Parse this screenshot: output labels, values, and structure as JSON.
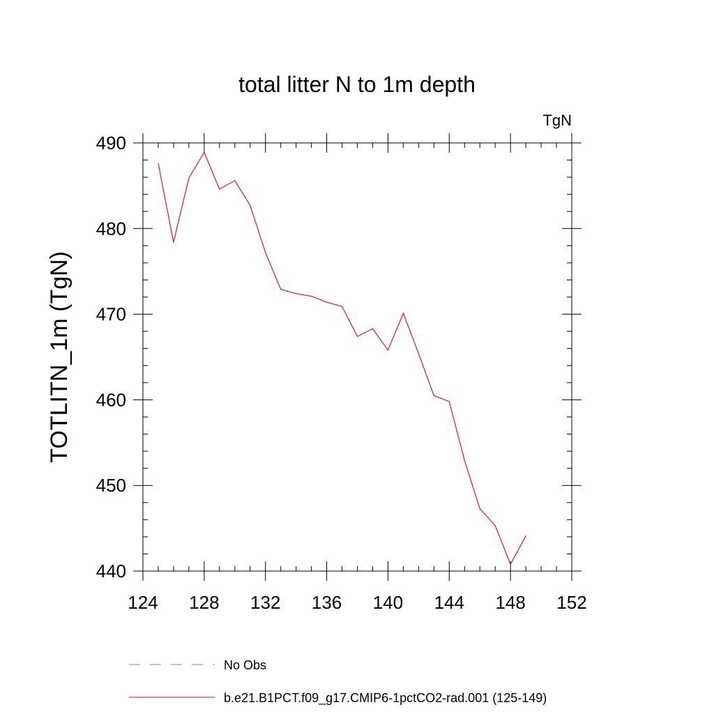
{
  "chart_data": {
    "type": "line",
    "title": "total litter N to 1m depth",
    "units_label": "TgN",
    "ylabel": "TOTLITN_1m  (TgN)",
    "xlabel": "",
    "xlim": [
      124,
      152
    ],
    "ylim": [
      440,
      490
    ],
    "x_ticks": [
      124,
      128,
      132,
      136,
      140,
      144,
      148,
      152
    ],
    "y_ticks": [
      440,
      450,
      460,
      470,
      480,
      490
    ],
    "grid": false,
    "legend_position": "bottom",
    "series": [
      {
        "name": "b.e21.B1PCT.f09_g17.CMIP6-1pctCO2-rad.001 (125-149)",
        "color": "#e8121e",
        "dash": "solid",
        "x": [
          125,
          126,
          127,
          128,
          129,
          130,
          131,
          132,
          133,
          134,
          135,
          136,
          137,
          138,
          139,
          140,
          141,
          142,
          143,
          144,
          145,
          146,
          147,
          148,
          149
        ],
        "y": [
          487.6,
          478.4,
          485.9,
          488.9,
          484.6,
          485.6,
          482.7,
          477.2,
          472.9,
          472.4,
          472.1,
          471.4,
          470.9,
          467.4,
          468.3,
          465.8,
          470.1,
          465.4,
          460.5,
          459.8,
          452.9,
          447.3,
          445.3,
          440.8,
          444.1
        ]
      }
    ],
    "legend": [
      {
        "label": "No Obs",
        "color": "#8a7fc7",
        "dash": "dashed"
      },
      {
        "label": "b.e21.B1PCT.f09_g17.CMIP6-1pctCO2-rad.001 (125-149)",
        "color": "#e8121e",
        "dash": "solid"
      }
    ]
  }
}
